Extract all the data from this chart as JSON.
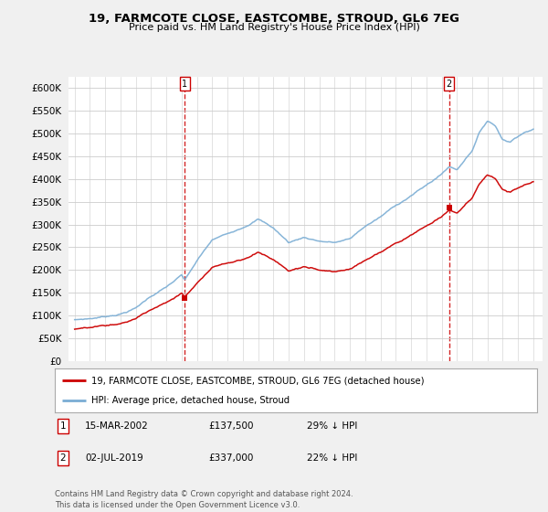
{
  "title": "19, FARMCOTE CLOSE, EASTCOMBE, STROUD, GL6 7EG",
  "subtitle": "Price paid vs. HM Land Registry's House Price Index (HPI)",
  "legend_label_red": "19, FARMCOTE CLOSE, EASTCOMBE, STROUD, GL6 7EG (detached house)",
  "legend_label_blue": "HPI: Average price, detached house, Stroud",
  "annotation1_label": "1",
  "annotation1_date": "15-MAR-2002",
  "annotation1_price": "£137,500",
  "annotation1_hpi": "29% ↓ HPI",
  "annotation2_label": "2",
  "annotation2_date": "02-JUL-2019",
  "annotation2_price": "£337,000",
  "annotation2_hpi": "22% ↓ HPI",
  "footer": "Contains HM Land Registry data © Crown copyright and database right 2024.\nThis data is licensed under the Open Government Licence v3.0.",
  "ylim": [
    0,
    625000
  ],
  "yticks": [
    0,
    50000,
    100000,
    150000,
    200000,
    250000,
    300000,
    350000,
    400000,
    450000,
    500000,
    550000,
    600000
  ],
  "color_red": "#cc0000",
  "color_blue": "#7aadd4",
  "color_vline": "#cc0000",
  "background_color": "#f0f0f0",
  "plot_bg": "#ffffff",
  "purchase1_year": 2002.21,
  "purchase1_value": 137500,
  "purchase2_year": 2019.5,
  "purchase2_value": 337000
}
